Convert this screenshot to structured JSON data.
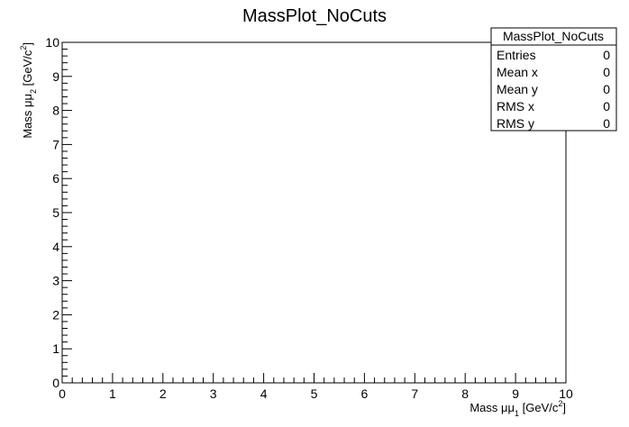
{
  "chart_data": {
    "type": "heatmap",
    "title": "MassPlot_NoCuts",
    "xlabel": {
      "base": "Mass μμ",
      "sub": "1",
      "unit_pre": " [GeV/c",
      "sup": "2",
      "unit_post": "]"
    },
    "ylabel": {
      "base": "Mass μμ",
      "sub": "2",
      "unit_pre": " [GeV/c",
      "sup": "2",
      "unit_post": "]"
    },
    "xlim": [
      0,
      10
    ],
    "ylim": [
      0,
      10
    ],
    "x_major_ticks": [
      0,
      1,
      2,
      3,
      4,
      5,
      6,
      7,
      8,
      9,
      10
    ],
    "y_major_ticks": [
      0,
      1,
      2,
      3,
      4,
      5,
      6,
      7,
      8,
      9,
      10
    ],
    "minor_divisions": 5,
    "grid": false,
    "values": [],
    "stats_box": {
      "title": "MassPlot_NoCuts",
      "placement": "top-right",
      "rows": [
        {
          "label": "Entries",
          "value": "0"
        },
        {
          "label": "Mean x",
          "value": "0"
        },
        {
          "label": "Mean y",
          "value": "0"
        },
        {
          "label": "RMS x",
          "value": "0"
        },
        {
          "label": "RMS y",
          "value": "0"
        }
      ]
    }
  }
}
